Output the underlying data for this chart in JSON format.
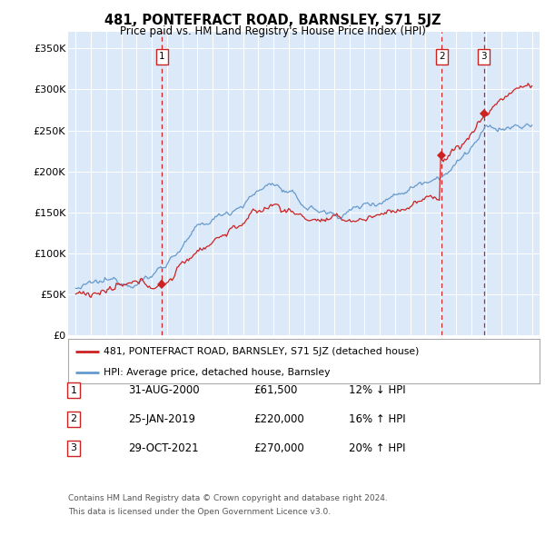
{
  "title": "481, PONTEFRACT ROAD, BARNSLEY, S71 5JZ",
  "subtitle": "Price paid vs. HM Land Registry's House Price Index (HPI)",
  "hpi_label": "HPI: Average price, detached house, Barnsley",
  "property_label": "481, PONTEFRACT ROAD, BARNSLEY, S71 5JZ (detached house)",
  "transactions": [
    {
      "num": 1,
      "date": "31-AUG-2000",
      "price": 61500,
      "pct": "12%",
      "dir": "↓"
    },
    {
      "num": 2,
      "date": "25-JAN-2019",
      "price": 220000,
      "pct": "16%",
      "dir": "↑"
    },
    {
      "num": 3,
      "date": "29-OCT-2021",
      "price": 270000,
      "pct": "20%",
      "dir": "↑"
    }
  ],
  "transaction_dates_decimal": [
    2000.664,
    2019.069,
    2021.829
  ],
  "transaction_prices": [
    61500,
    220000,
    270000
  ],
  "ylim": [
    0,
    370000
  ],
  "yticks": [
    0,
    50000,
    100000,
    150000,
    200000,
    250000,
    300000,
    350000
  ],
  "ytick_labels": [
    "£0",
    "£50K",
    "£100K",
    "£150K",
    "£200K",
    "£250K",
    "£300K",
    "£350K"
  ],
  "xlim_start": 1994.5,
  "xlim_end": 2025.5,
  "background_color": "#dce9f8",
  "hpi_line_color": "#6699cc",
  "property_line_color": "#cc2222",
  "vline_color": "#cc2222",
  "footer_line1": "Contains HM Land Registry data © Crown copyright and database right 2024.",
  "footer_line2": "This data is licensed under the Open Government Licence v3.0."
}
